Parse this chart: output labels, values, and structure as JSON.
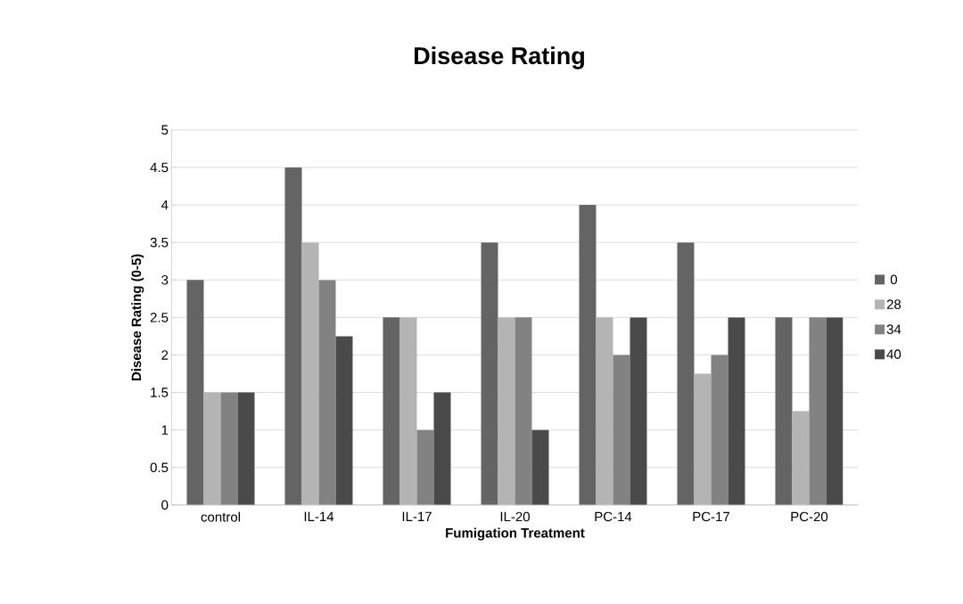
{
  "chart_data": {
    "type": "bar",
    "title": "Disease Rating",
    "xlabel": "Fumigation Treatment",
    "ylabel": "Disease Rating (0-5)",
    "categories": [
      "control",
      "IL-14",
      "IL-17",
      "IL-20",
      "PC-14",
      "PC-17",
      "PC-20"
    ],
    "series": [
      {
        "name": "0",
        "color": "#646464",
        "values": [
          3,
          4.5,
          2.5,
          3.5,
          4,
          3.5,
          2.5
        ]
      },
      {
        "name": "28",
        "color": "#b4b4b4",
        "values": [
          1.5,
          3.5,
          2.5,
          2.5,
          2.5,
          1.75,
          1.25
        ]
      },
      {
        "name": "34",
        "color": "#828282",
        "values": [
          1.5,
          3,
          1,
          2.5,
          2,
          2,
          2.5
        ]
      },
      {
        "name": "40",
        "color": "#4a4a4a",
        "values": [
          1.5,
          2.25,
          1.5,
          1,
          2.5,
          2.5,
          2.5
        ]
      }
    ],
    "ylim": [
      0,
      5
    ],
    "yticks": [
      0,
      0.5,
      1,
      1.5,
      2,
      2.5,
      3,
      3.5,
      4,
      4.5,
      5
    ],
    "grid": "y",
    "legend": "right"
  }
}
